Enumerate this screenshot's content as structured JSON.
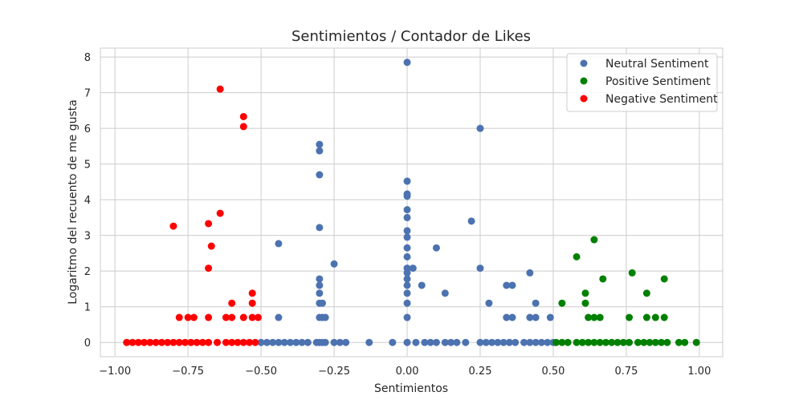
{
  "chart_data": {
    "type": "scatter",
    "title": "Sentimientos / Contador de Likes",
    "xlabel": "Sentimientos",
    "ylabel": "Logaritmo del recuento de me gusta",
    "xlim": [
      -1.05,
      1.08
    ],
    "ylim": [
      -0.4,
      8.25
    ],
    "x_ticks": [
      -1.0,
      -0.75,
      -0.5,
      -0.25,
      0.0,
      0.25,
      0.5,
      0.75,
      1.0
    ],
    "x_tick_labels": [
      "−1.00",
      "−0.75",
      "−0.50",
      "−0.25",
      "0.00",
      "0.25",
      "0.50",
      "0.75",
      "1.00"
    ],
    "y_ticks": [
      0,
      1,
      2,
      3,
      4,
      5,
      6,
      7,
      8
    ],
    "y_tick_labels": [
      "0",
      "1",
      "2",
      "3",
      "4",
      "5",
      "6",
      "7",
      "8"
    ],
    "grid": true,
    "legend_position": "top-right",
    "series": [
      {
        "name": "Neutral Sentiment",
        "color": "#4c72b0",
        "points": [
          [
            0.0,
            7.85
          ],
          [
            0.25,
            6.0
          ],
          [
            -0.3,
            5.55
          ],
          [
            -0.3,
            5.37
          ],
          [
            -0.3,
            4.7
          ],
          [
            0.0,
            4.52
          ],
          [
            0.0,
            4.16
          ],
          [
            0.0,
            4.1
          ],
          [
            0.0,
            3.72
          ],
          [
            0.0,
            3.5
          ],
          [
            0.22,
            3.4
          ],
          [
            -0.3,
            3.22
          ],
          [
            0.0,
            3.13
          ],
          [
            0.0,
            2.95
          ],
          [
            -0.44,
            2.77
          ],
          [
            0.0,
            2.65
          ],
          [
            0.1,
            2.65
          ],
          [
            0.0,
            2.4
          ],
          [
            -0.25,
            2.2
          ],
          [
            0.0,
            2.08
          ],
          [
            0.02,
            2.08
          ],
          [
            0.25,
            2.08
          ],
          [
            0.42,
            1.95
          ],
          [
            0.0,
            1.95
          ],
          [
            -0.3,
            1.78
          ],
          [
            0.0,
            1.78
          ],
          [
            -0.3,
            1.6
          ],
          [
            0.0,
            1.6
          ],
          [
            0.05,
            1.6
          ],
          [
            0.34,
            1.6
          ],
          [
            0.36,
            1.6
          ],
          [
            -0.3,
            1.38
          ],
          [
            0.0,
            1.38
          ],
          [
            0.13,
            1.38
          ],
          [
            -0.3,
            1.1
          ],
          [
            -0.29,
            1.1
          ],
          [
            0.0,
            1.1
          ],
          [
            0.28,
            1.1
          ],
          [
            0.44,
            1.1
          ],
          [
            -0.44,
            0.7
          ],
          [
            -0.3,
            0.7
          ],
          [
            -0.29,
            0.7
          ],
          [
            -0.28,
            0.7
          ],
          [
            0.0,
            0.7
          ],
          [
            0.34,
            0.7
          ],
          [
            0.36,
            0.7
          ],
          [
            0.42,
            0.7
          ],
          [
            0.44,
            0.7
          ],
          [
            0.49,
            0.7
          ],
          [
            -0.5,
            0.0
          ],
          [
            -0.48,
            0.0
          ],
          [
            -0.46,
            0.0
          ],
          [
            -0.44,
            0.0
          ],
          [
            -0.42,
            0.0
          ],
          [
            -0.4,
            0.0
          ],
          [
            -0.38,
            0.0
          ],
          [
            -0.36,
            0.0
          ],
          [
            -0.34,
            0.0
          ],
          [
            -0.31,
            0.0
          ],
          [
            -0.3,
            0.0
          ],
          [
            -0.29,
            0.0
          ],
          [
            -0.28,
            0.0
          ],
          [
            -0.25,
            0.0
          ],
          [
            -0.23,
            0.0
          ],
          [
            -0.21,
            0.0
          ],
          [
            -0.13,
            0.0
          ],
          [
            -0.05,
            0.0
          ],
          [
            0.0,
            0.0
          ],
          [
            0.03,
            0.0
          ],
          [
            0.06,
            0.0
          ],
          [
            0.08,
            0.0
          ],
          [
            0.1,
            0.0
          ],
          [
            0.13,
            0.0
          ],
          [
            0.15,
            0.0
          ],
          [
            0.17,
            0.0
          ],
          [
            0.2,
            0.0
          ],
          [
            0.25,
            0.0
          ],
          [
            0.27,
            0.0
          ],
          [
            0.29,
            0.0
          ],
          [
            0.31,
            0.0
          ],
          [
            0.33,
            0.0
          ],
          [
            0.35,
            0.0
          ],
          [
            0.37,
            0.0
          ],
          [
            0.4,
            0.0
          ],
          [
            0.42,
            0.0
          ],
          [
            0.44,
            0.0
          ],
          [
            0.46,
            0.0
          ],
          [
            0.48,
            0.0
          ],
          [
            0.5,
            0.0
          ]
        ]
      },
      {
        "name": "Positive Sentiment",
        "color": "#008000",
        "points": [
          [
            0.64,
            2.88
          ],
          [
            0.58,
            2.4
          ],
          [
            0.77,
            1.95
          ],
          [
            0.67,
            1.78
          ],
          [
            0.88,
            1.78
          ],
          [
            0.61,
            1.38
          ],
          [
            0.82,
            1.38
          ],
          [
            0.53,
            1.1
          ],
          [
            0.61,
            1.1
          ],
          [
            0.62,
            0.7
          ],
          [
            0.64,
            0.7
          ],
          [
            0.66,
            0.7
          ],
          [
            0.76,
            0.7
          ],
          [
            0.82,
            0.7
          ],
          [
            0.85,
            0.7
          ],
          [
            0.88,
            0.7
          ],
          [
            0.51,
            0.0
          ],
          [
            0.53,
            0.0
          ],
          [
            0.55,
            0.0
          ],
          [
            0.58,
            0.0
          ],
          [
            0.6,
            0.0
          ],
          [
            0.62,
            0.0
          ],
          [
            0.64,
            0.0
          ],
          [
            0.66,
            0.0
          ],
          [
            0.68,
            0.0
          ],
          [
            0.7,
            0.0
          ],
          [
            0.72,
            0.0
          ],
          [
            0.74,
            0.0
          ],
          [
            0.76,
            0.0
          ],
          [
            0.79,
            0.0
          ],
          [
            0.81,
            0.0
          ],
          [
            0.83,
            0.0
          ],
          [
            0.85,
            0.0
          ],
          [
            0.87,
            0.0
          ],
          [
            0.89,
            0.0
          ],
          [
            0.93,
            0.0
          ],
          [
            0.95,
            0.0
          ],
          [
            0.99,
            0.0
          ]
        ]
      },
      {
        "name": "Negative Sentiment",
        "color": "#ff0000",
        "points": [
          [
            -0.64,
            7.1
          ],
          [
            -0.56,
            6.33
          ],
          [
            -0.56,
            6.05
          ],
          [
            -0.64,
            3.62
          ],
          [
            -0.68,
            3.33
          ],
          [
            -0.8,
            3.26
          ],
          [
            -0.67,
            2.7
          ],
          [
            -0.68,
            2.08
          ],
          [
            -0.53,
            1.38
          ],
          [
            -0.6,
            1.1
          ],
          [
            -0.53,
            1.1
          ],
          [
            -0.78,
            0.7
          ],
          [
            -0.75,
            0.7
          ],
          [
            -0.73,
            0.7
          ],
          [
            -0.68,
            0.7
          ],
          [
            -0.62,
            0.7
          ],
          [
            -0.6,
            0.7
          ],
          [
            -0.56,
            0.7
          ],
          [
            -0.53,
            0.7
          ],
          [
            -0.51,
            0.7
          ],
          [
            -0.96,
            0.0
          ],
          [
            -0.94,
            0.0
          ],
          [
            -0.92,
            0.0
          ],
          [
            -0.9,
            0.0
          ],
          [
            -0.88,
            0.0
          ],
          [
            -0.86,
            0.0
          ],
          [
            -0.84,
            0.0
          ],
          [
            -0.82,
            0.0
          ],
          [
            -0.8,
            0.0
          ],
          [
            -0.78,
            0.0
          ],
          [
            -0.76,
            0.0
          ],
          [
            -0.74,
            0.0
          ],
          [
            -0.72,
            0.0
          ],
          [
            -0.7,
            0.0
          ],
          [
            -0.68,
            0.0
          ],
          [
            -0.65,
            0.0
          ],
          [
            -0.62,
            0.0
          ],
          [
            -0.6,
            0.0
          ],
          [
            -0.58,
            0.0
          ],
          [
            -0.56,
            0.0
          ],
          [
            -0.54,
            0.0
          ],
          [
            -0.52,
            0.0
          ]
        ]
      }
    ]
  }
}
